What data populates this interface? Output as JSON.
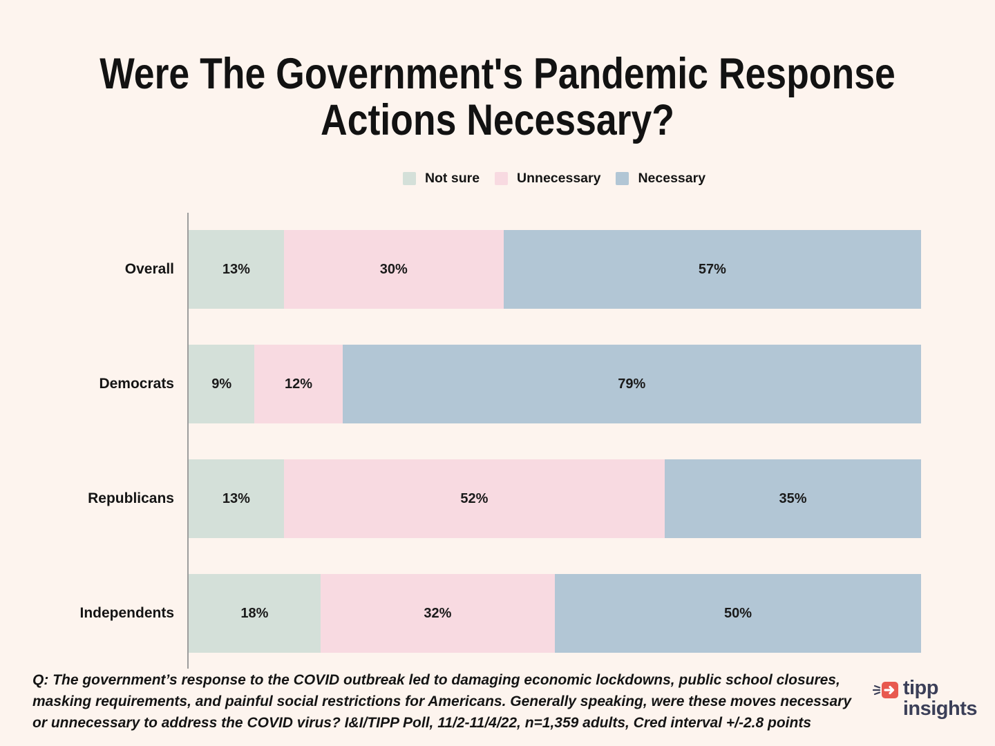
{
  "page": {
    "background": "#FDF4EE"
  },
  "title": "Were The Government's Pandemic Response Actions Necessary?",
  "legend": [
    {
      "label": "Not sure",
      "color": "#D4E0D9"
    },
    {
      "label": "Unnecessary",
      "color": "#F8DAE1"
    },
    {
      "label": "Necessary",
      "color": "#B2C6D5"
    }
  ],
  "chart_data": {
    "type": "bar",
    "orientation": "horizontal",
    "stacked": true,
    "categories": [
      "Overall",
      "Democrats",
      "Republicans",
      "Independents"
    ],
    "series": [
      {
        "name": "Not sure",
        "color": "#D4E0D9",
        "values": [
          13,
          9,
          13,
          18
        ]
      },
      {
        "name": "Unnecessary",
        "color": "#F8DAE1",
        "values": [
          30,
          12,
          52,
          32
        ]
      },
      {
        "name": "Necessary",
        "color": "#B2C6D5",
        "values": [
          57,
          79,
          35,
          50
        ]
      }
    ],
    "value_suffix": "%",
    "xlim": [
      0,
      100
    ],
    "grid": false,
    "legend_position": "top-center",
    "axis_line_color": "#9C9C9C"
  },
  "footnote": "Q:  The government’s response to the COVID outbreak led to damaging economic lockdowns, public school closures, masking requirements,  and painful social restrictions for Americans. Generally speaking, were these moves necessary or unnecessary to address the COVID virus? I&I/TIPP Poll, 11/2-11/4/22, n=1,359 adults, Cred interval +/-2.8 points",
  "logo": {
    "line1": "tipp",
    "line2": "insights",
    "accent_color": "#E8594F",
    "text_color": "#3B3F58"
  }
}
